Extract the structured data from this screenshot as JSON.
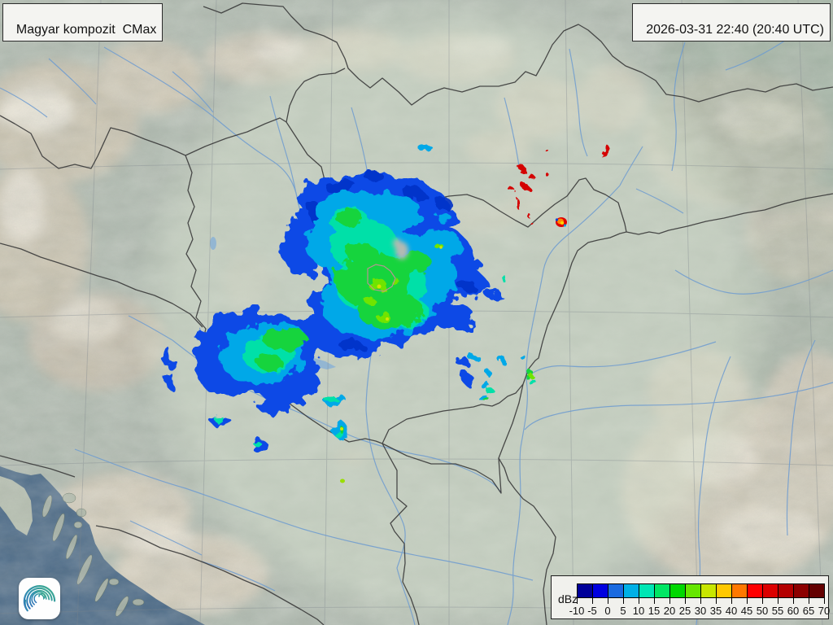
{
  "product": {
    "label": "Magyar kompozit  CMax"
  },
  "timestamp": {
    "label": "2026-03-31 22:40 (20:40 UTC)"
  },
  "colorbar": {
    "unit": "dBz",
    "tick_labels": [
      "-10",
      "-5",
      "0",
      "5",
      "10",
      "15",
      "20",
      "25",
      "30",
      "35",
      "40",
      "45",
      "50",
      "55",
      "60",
      "65",
      "70"
    ],
    "cell_colors": [
      "#000099",
      "#0000e0",
      "#1a6ae0",
      "#00b0e6",
      "#00e6b4",
      "#00e664",
      "#00d800",
      "#66e600",
      "#c8e600",
      "#ffc800",
      "#ff7800",
      "#ff0000",
      "#dc0000",
      "#b40000",
      "#8c0000",
      "#640000"
    ]
  },
  "logo": {
    "icon": "spiral-vortex-logo"
  },
  "map": {
    "colors": {
      "terrain_base": "#b2bcb2",
      "coverage_circle": "#d6e0ce",
      "sea": "#4e6c89",
      "border": "#3a3a3a",
      "river": "#6f9cd0",
      "lake": "#93b6d2",
      "city_outline": "#d48aa2",
      "clutter": "#d40000"
    }
  }
}
